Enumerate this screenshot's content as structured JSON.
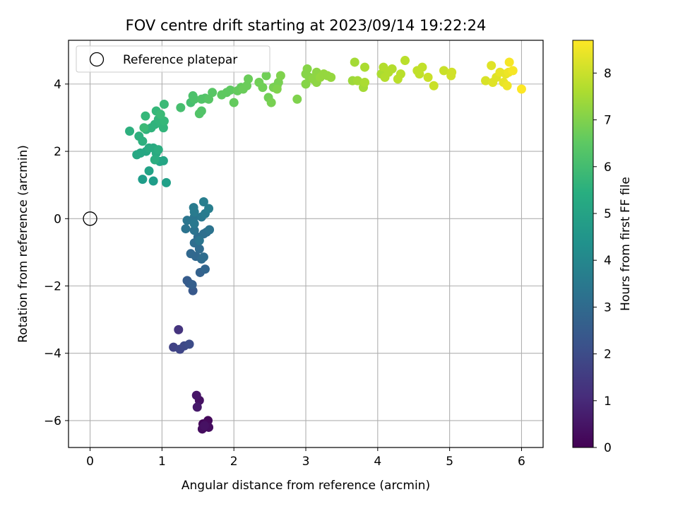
{
  "chart_data": {
    "type": "scatter",
    "title": "FOV centre drift starting at 2023/09/14 19:22:24",
    "xlabel": "Angular distance from reference (arcmin)",
    "ylabel": "Rotation from reference (arcmin)",
    "xlim": [
      -0.3,
      6.3
    ],
    "ylim": [
      -6.8,
      5.3
    ],
    "xticks": [
      0,
      1,
      2,
      3,
      4,
      5,
      6
    ],
    "yticks": [
      -6,
      -4,
      -2,
      0,
      2,
      4
    ],
    "grid": true,
    "legend": {
      "position": "top-left",
      "entries": [
        "Reference platepar"
      ]
    },
    "reference_point": {
      "x": 0,
      "y": 0,
      "label": "Reference platepar"
    },
    "colorbar": {
      "label": "Hours from first FF file",
      "range": [
        0,
        8.7
      ],
      "ticks": [
        0,
        1,
        2,
        3,
        4,
        5,
        6,
        7,
        8
      ],
      "colormap": "viridis"
    },
    "series": [
      {
        "points": [
          [
            1.57,
            -6.1,
            0.1
          ],
          [
            1.64,
            -6.0,
            0.2
          ],
          [
            1.56,
            -6.25,
            0.3
          ],
          [
            1.65,
            -6.2,
            0.3
          ],
          [
            1.52,
            -5.4,
            0.4
          ],
          [
            1.48,
            -5.25,
            0.5
          ],
          [
            1.49,
            -5.6,
            0.6
          ],
          [
            1.59,
            -6.15,
            0.4
          ],
          [
            1.23,
            -3.3,
            1.3
          ],
          [
            1.16,
            -3.82,
            1.7
          ],
          [
            1.25,
            -3.88,
            1.8
          ],
          [
            1.31,
            -3.78,
            1.9
          ],
          [
            1.38,
            -3.73,
            2.0
          ],
          [
            1.43,
            -2.14,
            2.4
          ],
          [
            1.35,
            -1.84,
            2.5
          ],
          [
            1.38,
            -1.92,
            2.5
          ],
          [
            1.42,
            -1.96,
            2.6
          ],
          [
            1.53,
            -1.6,
            2.7
          ],
          [
            1.6,
            -1.5,
            2.8
          ],
          [
            1.4,
            -1.04,
            2.9
          ],
          [
            1.47,
            -1.12,
            2.9
          ],
          [
            1.52,
            -0.9,
            3.0
          ],
          [
            1.55,
            -1.2,
            3.0
          ],
          [
            1.58,
            -1.14,
            3.1
          ],
          [
            1.45,
            -0.72,
            3.1
          ],
          [
            1.5,
            -0.55,
            3.1
          ],
          [
            1.58,
            -0.45,
            3.2
          ],
          [
            1.62,
            -0.4,
            3.2
          ],
          [
            1.66,
            -0.33,
            3.3
          ],
          [
            1.33,
            -0.3,
            3.3
          ],
          [
            1.45,
            -0.35,
            3.3
          ],
          [
            1.52,
            -0.65,
            3.4
          ],
          [
            1.35,
            -0.05,
            3.4
          ],
          [
            1.45,
            0.05,
            3.4
          ],
          [
            1.45,
            -0.15,
            3.5
          ],
          [
            1.55,
            0.05,
            3.5
          ],
          [
            1.6,
            0.15,
            3.6
          ],
          [
            1.45,
            0.2,
            3.6
          ],
          [
            1.44,
            0.33,
            3.6
          ],
          [
            1.65,
            0.3,
            3.7
          ],
          [
            1.58,
            0.5,
            3.7
          ],
          [
            0.73,
            1.17,
            4.8
          ],
          [
            0.88,
            1.12,
            4.8
          ],
          [
            1.06,
            1.07,
            4.9
          ],
          [
            0.82,
            1.42,
            5.0
          ],
          [
            0.97,
            1.7,
            5.1
          ],
          [
            1.02,
            1.72,
            5.1
          ],
          [
            0.65,
            1.9,
            5.2
          ],
          [
            0.7,
            1.95,
            5.2
          ],
          [
            0.78,
            2.0,
            5.2
          ],
          [
            0.82,
            2.1,
            5.3
          ],
          [
            0.88,
            2.1,
            5.3
          ],
          [
            0.92,
            1.95,
            5.3
          ],
          [
            0.95,
            2.05,
            5.4
          ],
          [
            0.9,
            1.75,
            5.4
          ],
          [
            0.55,
            2.6,
            5.5
          ],
          [
            0.68,
            2.45,
            5.5
          ],
          [
            0.73,
            2.3,
            5.5
          ],
          [
            0.78,
            2.65,
            5.6
          ],
          [
            0.85,
            2.7,
            5.6
          ],
          [
            0.9,
            2.8,
            5.6
          ],
          [
            0.95,
            2.95,
            5.7
          ],
          [
            1.0,
            2.8,
            5.7
          ],
          [
            1.02,
            2.7,
            5.7
          ],
          [
            1.03,
            2.9,
            5.8
          ],
          [
            0.77,
            3.05,
            5.8
          ],
          [
            0.92,
            3.2,
            5.8
          ],
          [
            0.98,
            3.1,
            5.9
          ],
          [
            1.03,
            3.4,
            5.9
          ],
          [
            0.75,
            2.7,
            5.9
          ],
          [
            1.26,
            3.3,
            6.1
          ],
          [
            1.4,
            3.45,
            6.1
          ],
          [
            1.45,
            3.55,
            6.2
          ],
          [
            1.43,
            3.65,
            6.2
          ],
          [
            1.55,
            3.55,
            6.3
          ],
          [
            1.6,
            3.58,
            6.3
          ],
          [
            1.55,
            3.2,
            6.3
          ],
          [
            1.52,
            3.12,
            6.3
          ],
          [
            1.65,
            3.55,
            6.4
          ],
          [
            1.7,
            3.75,
            6.4
          ],
          [
            1.83,
            3.68,
            6.5
          ],
          [
            1.9,
            3.75,
            6.5
          ],
          [
            1.95,
            3.82,
            6.5
          ],
          [
            2.0,
            3.45,
            6.6
          ],
          [
            2.05,
            3.8,
            6.6
          ],
          [
            2.1,
            3.9,
            6.6
          ],
          [
            2.13,
            3.85,
            6.7
          ],
          [
            2.18,
            3.95,
            6.7
          ],
          [
            2.2,
            4.15,
            6.7
          ],
          [
            2.35,
            4.05,
            6.8
          ],
          [
            2.4,
            3.9,
            6.8
          ],
          [
            2.45,
            4.25,
            6.8
          ],
          [
            2.48,
            3.6,
            6.8
          ],
          [
            2.52,
            3.45,
            6.9
          ],
          [
            2.55,
            3.9,
            6.9
          ],
          [
            2.6,
            3.95,
            6.9
          ],
          [
            2.62,
            4.05,
            6.9
          ],
          [
            2.65,
            4.25,
            7.0
          ],
          [
            2.88,
            3.55,
            7.0
          ],
          [
            2.6,
            3.85,
            7.0
          ],
          [
            3.0,
            4.0,
            7.1
          ],
          [
            3.0,
            4.3,
            7.1
          ],
          [
            3.05,
            4.2,
            7.1
          ],
          [
            3.1,
            4.15,
            7.2
          ],
          [
            3.15,
            4.35,
            7.2
          ],
          [
            3.15,
            4.05,
            7.2
          ],
          [
            3.2,
            4.2,
            7.3
          ],
          [
            3.25,
            4.3,
            7.3
          ],
          [
            3.3,
            4.25,
            7.3
          ],
          [
            3.35,
            4.2,
            7.3
          ],
          [
            3.02,
            4.45,
            7.1
          ],
          [
            3.65,
            4.1,
            7.4
          ],
          [
            3.68,
            4.65,
            7.5
          ],
          [
            3.72,
            4.1,
            7.5
          ],
          [
            3.8,
            3.9,
            7.5
          ],
          [
            3.82,
            4.05,
            7.6
          ],
          [
            3.82,
            4.5,
            7.6
          ],
          [
            4.05,
            4.3,
            7.6
          ],
          [
            4.08,
            4.5,
            7.7
          ],
          [
            4.1,
            4.2,
            7.7
          ],
          [
            4.15,
            4.35,
            7.7
          ],
          [
            4.2,
            4.45,
            7.7
          ],
          [
            4.28,
            4.15,
            7.8
          ],
          [
            4.32,
            4.3,
            7.8
          ],
          [
            4.38,
            4.7,
            7.8
          ],
          [
            4.55,
            4.4,
            7.9
          ],
          [
            4.58,
            4.3,
            7.9
          ],
          [
            4.62,
            4.5,
            7.9
          ],
          [
            4.7,
            4.2,
            8.0
          ],
          [
            4.78,
            3.95,
            8.0
          ],
          [
            4.92,
            4.4,
            8.0
          ],
          [
            5.02,
            4.25,
            8.1
          ],
          [
            5.03,
            4.35,
            8.1
          ],
          [
            5.5,
            4.1,
            8.2
          ],
          [
            5.58,
            4.55,
            8.3
          ],
          [
            5.6,
            4.05,
            8.3
          ],
          [
            5.65,
            4.2,
            8.3
          ],
          [
            5.7,
            4.35,
            8.4
          ],
          [
            5.75,
            4.05,
            8.4
          ],
          [
            5.78,
            4.3,
            8.4
          ],
          [
            5.8,
            3.95,
            8.5
          ],
          [
            5.82,
            4.35,
            8.5
          ],
          [
            5.83,
            4.65,
            8.6
          ],
          [
            5.88,
            4.4,
            8.6
          ],
          [
            6.0,
            3.85,
            8.7
          ]
        ]
      }
    ]
  }
}
